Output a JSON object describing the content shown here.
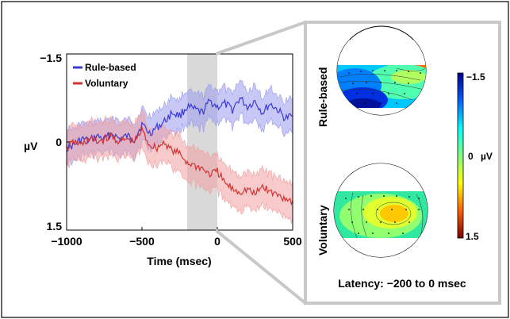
{
  "chart_data": {
    "type": "line",
    "xlabel": "Time (msec)",
    "ylabel": "µV",
    "xlim": [
      -1000,
      500
    ],
    "ylim": [
      -1.5,
      1.5
    ],
    "y_inverted": true,
    "xticks": [
      -1000,
      -500,
      0,
      500
    ],
    "xtick_labels": [
      "−1000",
      "−500",
      "0",
      "500"
    ],
    "yticks": [
      -1.5,
      0,
      1.5
    ],
    "ytick_labels": [
      "−1.5",
      "0",
      "1.5"
    ],
    "legend": "top-left",
    "highlight_window": [
      -200,
      0
    ],
    "series": [
      {
        "name": "Rule-based",
        "color": "#3c3cd2",
        "band_color": "#9a9aee",
        "x": [
          -1000,
          -950,
          -900,
          -850,
          -800,
          -750,
          -700,
          -650,
          -600,
          -550,
          -500,
          -450,
          -400,
          -350,
          -300,
          -250,
          -200,
          -150,
          -100,
          -50,
          0,
          50,
          100,
          150,
          200,
          250,
          300,
          350,
          400,
          450,
          500
        ],
        "values": [
          0.1,
          0.05,
          -0.05,
          -0.02,
          -0.1,
          -0.05,
          -0.15,
          -0.05,
          -0.1,
          -0.05,
          -0.3,
          -0.15,
          -0.25,
          -0.35,
          -0.5,
          -0.45,
          -0.6,
          -0.55,
          -0.5,
          -0.7,
          -0.6,
          -0.65,
          -0.55,
          -0.75,
          -0.6,
          -0.7,
          -0.5,
          -0.65,
          -0.55,
          -0.4,
          -0.45
        ],
        "error": 0.28
      },
      {
        "name": "Voluntary",
        "color": "#d23232",
        "band_color": "#f0a0a0",
        "x": [
          -1000,
          -950,
          -900,
          -850,
          -800,
          -750,
          -700,
          -650,
          -600,
          -550,
          -500,
          -450,
          -400,
          -350,
          -300,
          -250,
          -200,
          -150,
          -100,
          -50,
          0,
          50,
          100,
          150,
          200,
          250,
          300,
          350,
          400,
          450,
          500
        ],
        "values": [
          0.1,
          0.0,
          0.05,
          -0.05,
          0.0,
          -0.05,
          -0.1,
          0.0,
          -0.05,
          0.0,
          -0.2,
          0.05,
          0.1,
          0.0,
          0.15,
          0.2,
          0.35,
          0.4,
          0.45,
          0.55,
          0.5,
          0.7,
          0.8,
          0.85,
          0.8,
          0.9,
          0.75,
          0.85,
          0.9,
          0.95,
          1.0
        ],
        "error": 0.3
      }
    ]
  },
  "topomaps": {
    "maps": [
      {
        "label": "Rule-based",
        "pattern": "negative"
      },
      {
        "label": "Voluntary",
        "pattern": "positive"
      }
    ],
    "colorbar": {
      "min_label": "−1.5",
      "mid_label": "0",
      "max_label": "1.5",
      "unit": "µV",
      "colors": [
        "#00008f",
        "#0060ff",
        "#00ffff",
        "#80ff80",
        "#ffff00",
        "#ff6000",
        "#800000"
      ]
    },
    "latency_caption": "Latency: −200 to 0 msec"
  }
}
